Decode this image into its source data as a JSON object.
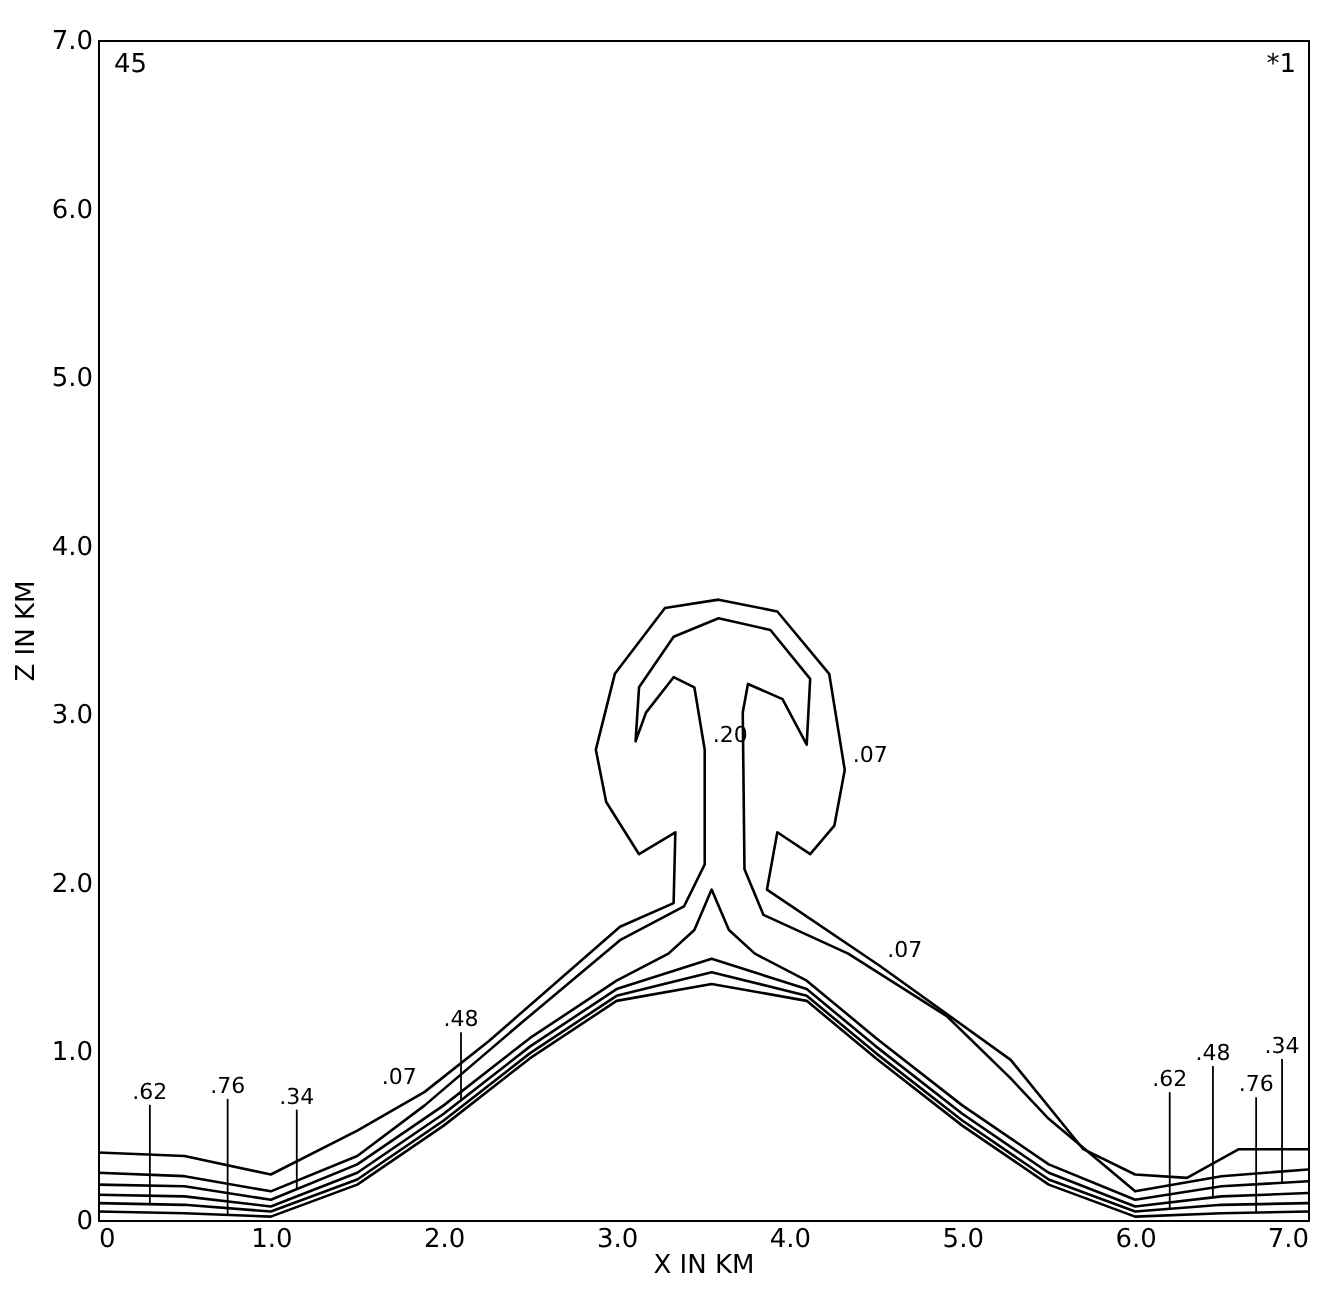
{
  "chart_data": {
    "type": "line",
    "xlabel": "X IN KM",
    "ylabel": "Z IN KM",
    "xlim": [
      0,
      7
    ],
    "ylim": [
      0,
      7
    ],
    "xticks": [
      0,
      {
        "value": 1,
        "label": "1.0"
      },
      {
        "value": 2,
        "label": "2.0"
      },
      {
        "value": 3,
        "label": "3.0"
      },
      {
        "value": 4,
        "label": "4.0"
      },
      {
        "value": 5,
        "label": "5.0"
      },
      {
        "value": 6,
        "label": "6.0"
      },
      {
        "value": 7,
        "label": "7.0"
      }
    ],
    "yticks": [
      0,
      {
        "value": 1,
        "label": "1.0"
      },
      {
        "value": 2,
        "label": "2.0"
      },
      {
        "value": 3,
        "label": "3.0"
      },
      {
        "value": 4,
        "label": "4.0"
      },
      {
        "value": 5,
        "label": "5.0"
      },
      {
        "value": 6,
        "label": "6.0"
      },
      {
        "value": 7,
        "label": "7.0"
      }
    ],
    "grid": false,
    "marker": "none",
    "line_style": "solid",
    "series": [
      {
        "name": ".07",
        "color": "#000000",
        "x": [
          0,
          0.5,
          1.0,
          1.5,
          1.89,
          2.26,
          3.02,
          3.33,
          3.34,
          3.13,
          2.94,
          2.88,
          2.99,
          3.28,
          3.59,
          3.93,
          4.23,
          4.32,
          4.26,
          4.12,
          3.93,
          3.87,
          4.52,
          5.28,
          5.7,
          6.0,
          6.3,
          6.6,
          7.0
        ],
        "values": [
          0.4,
          0.38,
          0.27,
          0.53,
          0.76,
          1.06,
          1.74,
          1.88,
          2.3,
          2.17,
          2.48,
          2.79,
          3.24,
          3.63,
          3.68,
          3.61,
          3.24,
          2.67,
          2.34,
          2.17,
          2.3,
          1.96,
          1.51,
          0.95,
          0.42,
          0.27,
          0.25,
          0.42,
          0.42
        ]
      },
      {
        "name": ".20",
        "color": "#000000",
        "x": [
          0,
          0.5,
          1.0,
          1.5,
          1.89,
          2.45,
          3.02,
          3.39,
          3.51,
          3.51,
          3.45,
          3.33,
          3.17,
          3.11,
          3.13,
          3.33,
          3.59,
          3.89,
          4.12,
          4.1,
          3.96,
          3.76,
          3.73,
          3.74,
          3.85,
          4.34,
          4.91,
          5.28,
          5.5,
          6.0,
          6.5,
          7.0
        ],
        "values": [
          0.28,
          0.26,
          0.17,
          0.38,
          0.68,
          1.17,
          1.66,
          1.86,
          2.11,
          2.79,
          3.16,
          3.22,
          3.01,
          2.84,
          3.16,
          3.46,
          3.57,
          3.5,
          3.21,
          2.82,
          3.09,
          3.18,
          3.01,
          2.08,
          1.81,
          1.58,
          1.21,
          0.84,
          0.6,
          0.17,
          0.26,
          0.3
        ]
      },
      {
        "color": "#000000",
        "x": [
          0,
          0.5,
          1.0,
          1.5,
          2.0,
          2.5,
          3.0,
          3.3,
          3.45,
          3.55,
          3.65,
          3.8,
          4.1,
          4.5,
          5.0,
          5.5,
          6.0,
          6.5,
          7.0
        ],
        "values": [
          0.21,
          0.2,
          0.12,
          0.33,
          0.68,
          1.08,
          1.42,
          1.58,
          1.72,
          1.96,
          1.72,
          1.58,
          1.42,
          1.08,
          0.68,
          0.33,
          0.12,
          0.2,
          0.23
        ]
      },
      {
        "color": "#000000",
        "x": [
          0,
          0.5,
          1.0,
          1.5,
          2.0,
          2.5,
          3.0,
          3.55,
          4.1,
          4.5,
          5.0,
          5.5,
          6.0,
          6.5,
          7.0
        ],
        "values": [
          0.15,
          0.14,
          0.08,
          0.28,
          0.63,
          1.03,
          1.37,
          1.55,
          1.37,
          1.03,
          0.63,
          0.28,
          0.08,
          0.14,
          0.16
        ]
      },
      {
        "color": "#000000",
        "x": [
          0,
          0.5,
          1.0,
          1.5,
          2.0,
          2.5,
          3.0,
          3.55,
          4.1,
          4.5,
          5.0,
          5.5,
          6.0,
          6.5,
          7.0
        ],
        "values": [
          0.1,
          0.09,
          0.05,
          0.24,
          0.59,
          0.99,
          1.33,
          1.47,
          1.33,
          0.99,
          0.59,
          0.24,
          0.05,
          0.09,
          0.1
        ]
      },
      {
        "color": "#000000",
        "x": [
          0,
          0.5,
          1.0,
          1.5,
          2.0,
          2.5,
          3.0,
          3.55,
          4.1,
          4.5,
          5.0,
          5.5,
          6.0,
          6.5,
          7.0
        ],
        "values": [
          0.05,
          0.04,
          0.02,
          0.21,
          0.56,
          0.96,
          1.3,
          1.4,
          1.3,
          0.96,
          0.56,
          0.21,
          0.02,
          0.04,
          0.05
        ]
      }
    ],
    "annotations": [
      "45",
      "*1",
      {
        "text": ".62",
        "x": 0.3,
        "y": 0.09
      },
      {
        "text": ".76",
        "x": 0.75,
        "y": 0.03
      },
      {
        "text": ".34",
        "x": 1.15,
        "y": 0.18
      },
      {
        "text": ".48",
        "x": 2.1,
        "y": 0.71
      },
      {
        "text": ".62",
        "x": 6.2,
        "y": 0.07
      },
      {
        "text": ".48",
        "x": 6.45,
        "y": 0.13
      },
      {
        "text": ".76",
        "x": 6.7,
        "y": 0.04
      },
      {
        "text": ".34",
        "x": 6.85,
        "y": 0.22
      }
    ]
  }
}
